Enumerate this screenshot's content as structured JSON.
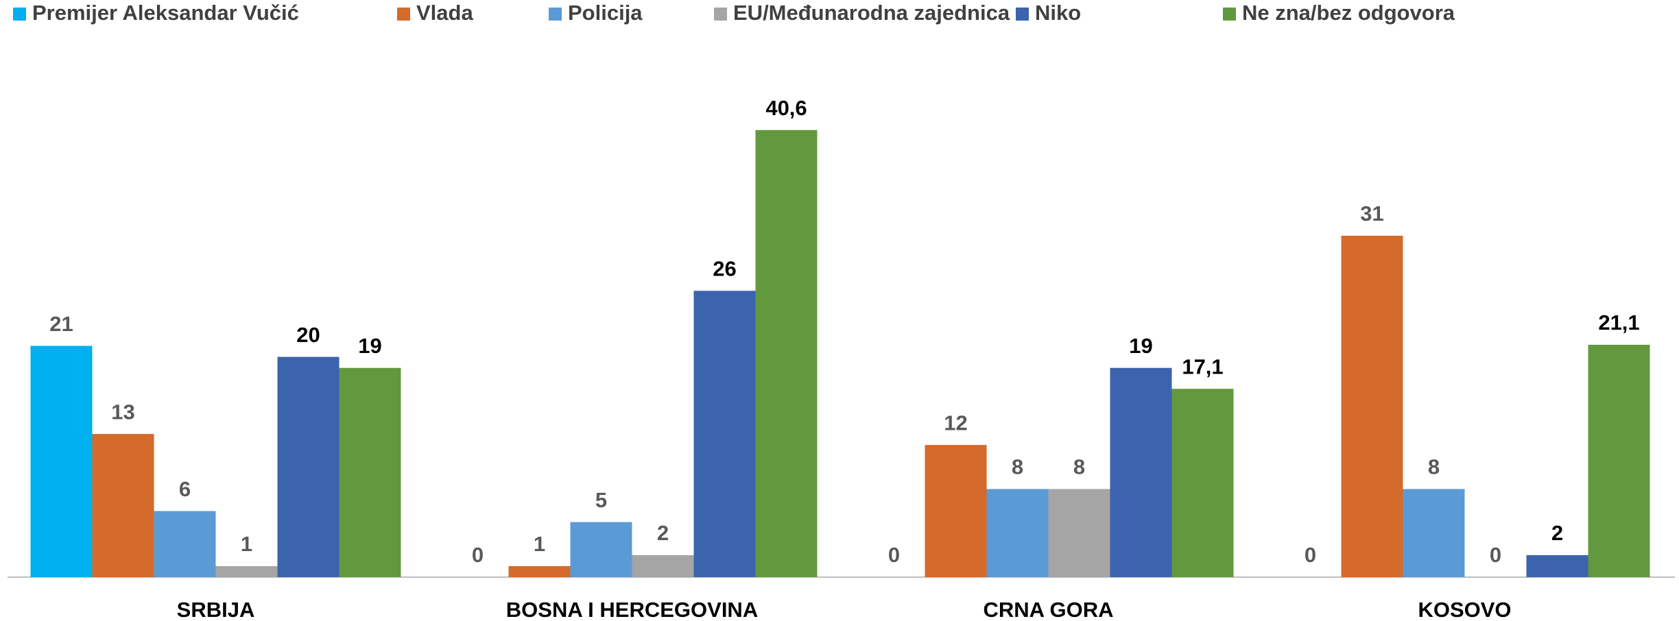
{
  "chart_data": {
    "type": "bar",
    "categories": [
      "SRBIJA",
      "BOSNA I HERCEGOVINA",
      "CRNA GORA",
      "KOSOVO"
    ],
    "series": [
      {
        "name": "Premijer Aleksandar Vučić",
        "color": "#00b0f0",
        "label_color": "#595959",
        "values": [
          21,
          0,
          0,
          0
        ]
      },
      {
        "name": "Vlada",
        "color": "#d46b2a",
        "label_color": "#595959",
        "values": [
          13,
          1,
          12,
          31
        ]
      },
      {
        "name": "Policija",
        "color": "#5b9bd5",
        "label_color": "#595959",
        "values": [
          6,
          5,
          8,
          8
        ]
      },
      {
        "name": "EU/Međunarodna zajednica",
        "color": "#a5a5a5",
        "label_color": "#595959",
        "values": [
          1,
          2,
          8,
          0
        ]
      },
      {
        "name": "Niko",
        "color": "#3c64ae",
        "label_color": "#000000",
        "values": [
          20,
          26,
          19,
          2
        ]
      },
      {
        "name": "Ne zna/bez odgovora",
        "color": "#62993e",
        "label_color": "#000000",
        "values": [
          19,
          40.6,
          17.1,
          21.1
        ],
        "value_labels": [
          "19",
          "40,6",
          "17,1",
          "21,1"
        ]
      }
    ],
    "ylim": [
      0,
      45
    ],
    "legend": "top",
    "grid": false
  }
}
